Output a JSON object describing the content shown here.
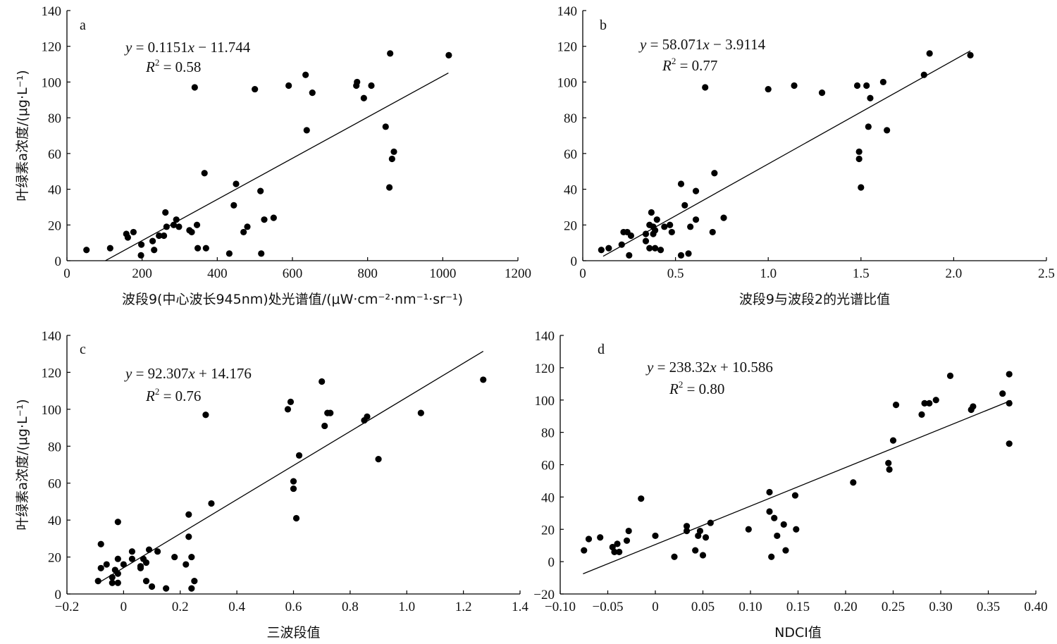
{
  "chart_data": [
    {
      "type": "scatter",
      "panel_label": "a",
      "xlabel": "波段9(中心波长945nm)处光谱值/(μW·cm⁻²·nm⁻¹·sr⁻¹)",
      "ylabel": "叶绿素a浓度/(μg·L⁻¹)",
      "xlim": [
        0,
        1200
      ],
      "ylim": [
        0,
        140
      ],
      "x_ticks": [
        "0",
        "200",
        "400",
        "600",
        "800",
        "1000",
        "1200"
      ],
      "y_ticks": [
        "0",
        "20",
        "40",
        "60",
        "80",
        "100",
        "120",
        "140"
      ],
      "equation": {
        "y": "y",
        "rhs": " = 0.1151",
        "x": "x",
        "tail": " − 11.744"
      },
      "r2": {
        "R": "R",
        "sup": "2",
        "value": " = 0.58"
      },
      "fit_line": {
        "slope": 0.1151,
        "intercept": -11.744,
        "x_range": [
          102,
          1015
        ]
      },
      "points": [
        [
          52,
          6
        ],
        [
          115,
          7
        ],
        [
          158,
          15
        ],
        [
          162,
          13
        ],
        [
          177,
          16
        ],
        [
          197,
          3
        ],
        [
          198,
          9
        ],
        [
          228,
          11
        ],
        [
          232,
          6
        ],
        [
          245,
          14
        ],
        [
          258,
          14
        ],
        [
          262,
          27
        ],
        [
          265,
          19
        ],
        [
          284,
          20
        ],
        [
          291,
          23
        ],
        [
          298,
          19
        ],
        [
          326,
          17
        ],
        [
          332,
          16
        ],
        [
          340,
          97
        ],
        [
          346,
          20
        ],
        [
          348,
          7
        ],
        [
          366,
          49
        ],
        [
          370,
          7
        ],
        [
          432,
          4
        ],
        [
          444,
          31
        ],
        [
          450,
          43
        ],
        [
          470,
          16
        ],
        [
          480,
          19
        ],
        [
          500,
          96
        ],
        [
          515,
          39
        ],
        [
          517,
          4
        ],
        [
          525,
          23
        ],
        [
          550,
          24
        ],
        [
          590,
          98
        ],
        [
          635,
          104
        ],
        [
          638,
          73
        ],
        [
          653,
          94
        ],
        [
          770,
          98
        ],
        [
          772,
          100
        ],
        [
          790,
          91
        ],
        [
          810,
          98
        ],
        [
          848,
          75
        ],
        [
          858,
          41
        ],
        [
          860,
          116
        ],
        [
          865,
          57
        ],
        [
          870,
          61
        ],
        [
          1016,
          115
        ]
      ]
    },
    {
      "type": "scatter",
      "panel_label": "b",
      "xlabel": "波段9与波段2的光谱比值",
      "ylabel": "",
      "xlim": [
        0,
        2.5
      ],
      "ylim": [
        0,
        140
      ],
      "x_ticks": [
        "0",
        "0.5",
        "1.0",
        "1.5",
        "2.0",
        "2.5"
      ],
      "y_ticks": [
        "0",
        "20",
        "40",
        "60",
        "80",
        "100",
        "120",
        "140"
      ],
      "equation": {
        "y": "y",
        "rhs": " = 58.071",
        "x": "x",
        "tail": " − 3.9114"
      },
      "r2": {
        "R": "R",
        "sup": "2",
        "value": " = 0.77"
      },
      "fit_line": {
        "slope": 58.071,
        "intercept": -3.9114,
        "x_range": [
          0.11,
          2.09
        ]
      },
      "points": [
        [
          0.1,
          6
        ],
        [
          0.14,
          7
        ],
        [
          0.21,
          9
        ],
        [
          0.22,
          16
        ],
        [
          0.24,
          16
        ],
        [
          0.25,
          3
        ],
        [
          0.26,
          14
        ],
        [
          0.34,
          15
        ],
        [
          0.34,
          11
        ],
        [
          0.36,
          7
        ],
        [
          0.36,
          20
        ],
        [
          0.37,
          27
        ],
        [
          0.38,
          15
        ],
        [
          0.38,
          19
        ],
        [
          0.39,
          17
        ],
        [
          0.39,
          7
        ],
        [
          0.4,
          23
        ],
        [
          0.42,
          6
        ],
        [
          0.44,
          19
        ],
        [
          0.47,
          20
        ],
        [
          0.48,
          16
        ],
        [
          0.53,
          43
        ],
        [
          0.53,
          3
        ],
        [
          0.55,
          31
        ],
        [
          0.57,
          4
        ],
        [
          0.58,
          19
        ],
        [
          0.61,
          39
        ],
        [
          0.61,
          23
        ],
        [
          0.66,
          97
        ],
        [
          0.7,
          16
        ],
        [
          0.71,
          49
        ],
        [
          0.76,
          24
        ],
        [
          1.0,
          96
        ],
        [
          1.14,
          98
        ],
        [
          1.29,
          94
        ],
        [
          1.48,
          98
        ],
        [
          1.49,
          61
        ],
        [
          1.49,
          57
        ],
        [
          1.5,
          41
        ],
        [
          1.53,
          98
        ],
        [
          1.54,
          75
        ],
        [
          1.55,
          91
        ],
        [
          1.62,
          100
        ],
        [
          1.64,
          73
        ],
        [
          1.84,
          104
        ],
        [
          1.87,
          116
        ],
        [
          2.09,
          115
        ]
      ]
    },
    {
      "type": "scatter",
      "panel_label": "c",
      "xlabel": "三波段值",
      "ylabel": "叶绿素a浓度/(μg·L⁻¹)",
      "xlim": [
        -0.2,
        1.4
      ],
      "ylim": [
        0,
        140
      ],
      "x_ticks": [
        "−0.2",
        "0",
        "0.2",
        "0.4",
        "0.6",
        "0.8",
        "1.0",
        "1.2",
        "1.4"
      ],
      "y_ticks": [
        "0",
        "20",
        "40",
        "60",
        "80",
        "100",
        "120",
        "140"
      ],
      "equation": {
        "y": "y",
        "rhs": " = 92.307",
        "x": "x",
        "tail": " + 14.176"
      },
      "r2": {
        "R": "R",
        "sup": "2",
        "value": " = 0.76"
      },
      "fit_line": {
        "slope": 92.307,
        "intercept": 14.176,
        "x_range": [
          -0.09,
          1.27
        ]
      },
      "points": [
        [
          -0.09,
          7
        ],
        [
          -0.08,
          27
        ],
        [
          -0.08,
          14
        ],
        [
          -0.06,
          16
        ],
        [
          -0.04,
          9
        ],
        [
          -0.04,
          6
        ],
        [
          -0.03,
          13
        ],
        [
          -0.02,
          19
        ],
        [
          -0.02,
          6
        ],
        [
          -0.02,
          11
        ],
        [
          -0.02,
          39
        ],
        [
          0.0,
          16
        ],
        [
          0.03,
          19
        ],
        [
          0.03,
          23
        ],
        [
          0.06,
          14
        ],
        [
          0.06,
          15
        ],
        [
          0.07,
          19
        ],
        [
          0.08,
          7
        ],
        [
          0.08,
          17
        ],
        [
          0.09,
          24
        ],
        [
          0.1,
          4
        ],
        [
          0.12,
          23
        ],
        [
          0.15,
          3
        ],
        [
          0.18,
          20
        ],
        [
          0.22,
          16
        ],
        [
          0.23,
          43
        ],
        [
          0.23,
          31
        ],
        [
          0.24,
          3
        ],
        [
          0.24,
          20
        ],
        [
          0.25,
          7
        ],
        [
          0.29,
          97
        ],
        [
          0.31,
          49
        ],
        [
          0.58,
          100
        ],
        [
          0.59,
          104
        ],
        [
          0.6,
          61
        ],
        [
          0.6,
          57
        ],
        [
          0.61,
          41
        ],
        [
          0.62,
          75
        ],
        [
          0.7,
          115
        ],
        [
          0.71,
          91
        ],
        [
          0.72,
          98
        ],
        [
          0.73,
          98
        ],
        [
          0.85,
          94
        ],
        [
          0.86,
          96
        ],
        [
          0.9,
          73
        ],
        [
          1.05,
          98
        ],
        [
          1.27,
          116
        ]
      ]
    },
    {
      "type": "scatter",
      "panel_label": "d",
      "xlabel": "NDCI值",
      "ylabel": "",
      "xlim": [
        -0.1,
        0.4
      ],
      "ylim": [
        -20,
        140
      ],
      "x_ticks": [
        "−0.10",
        "−0.05",
        "0",
        "0.05",
        "0.10",
        "0.15",
        "0.20",
        "0.25",
        "0.30",
        "0.35",
        "0.40"
      ],
      "y_ticks": [
        "−20",
        "0",
        "20",
        "40",
        "60",
        "80",
        "100",
        "120",
        "140"
      ],
      "equation": {
        "y": "y",
        "rhs": " = 238.32",
        "x": "x",
        "tail": " + 10.586"
      },
      "r2": {
        "R": "R",
        "sup": "2",
        "value": " = 0.80"
      },
      "fit_line": {
        "slope": 238.32,
        "intercept": 10.586,
        "x_range": [
          -0.076,
          0.374
        ]
      },
      "points": [
        [
          -0.075,
          7
        ],
        [
          -0.07,
          14
        ],
        [
          -0.058,
          15
        ],
        [
          -0.045,
          9
        ],
        [
          -0.043,
          6
        ],
        [
          -0.04,
          11
        ],
        [
          -0.038,
          6
        ],
        [
          -0.03,
          13
        ],
        [
          -0.028,
          19
        ],
        [
          -0.015,
          39
        ],
        [
          0.0,
          16
        ],
        [
          0.02,
          3
        ],
        [
          0.033,
          19
        ],
        [
          0.033,
          22
        ],
        [
          0.042,
          7
        ],
        [
          0.045,
          16
        ],
        [
          0.047,
          19
        ],
        [
          0.05,
          4
        ],
        [
          0.053,
          15
        ],
        [
          0.058,
          24
        ],
        [
          0.098,
          20
        ],
        [
          0.12,
          43
        ],
        [
          0.12,
          31
        ],
        [
          0.122,
          3
        ],
        [
          0.125,
          27
        ],
        [
          0.128,
          16
        ],
        [
          0.135,
          23
        ],
        [
          0.137,
          7
        ],
        [
          0.147,
          41
        ],
        [
          0.148,
          20
        ],
        [
          0.208,
          49
        ],
        [
          0.245,
          61
        ],
        [
          0.246,
          57
        ],
        [
          0.25,
          75
        ],
        [
          0.253,
          97
        ],
        [
          0.28,
          91
        ],
        [
          0.283,
          98
        ],
        [
          0.288,
          98
        ],
        [
          0.295,
          100
        ],
        [
          0.31,
          115
        ],
        [
          0.332,
          94
        ],
        [
          0.334,
          96
        ],
        [
          0.365,
          104
        ],
        [
          0.372,
          116
        ],
        [
          0.372,
          98
        ],
        [
          0.372,
          73
        ]
      ]
    }
  ]
}
